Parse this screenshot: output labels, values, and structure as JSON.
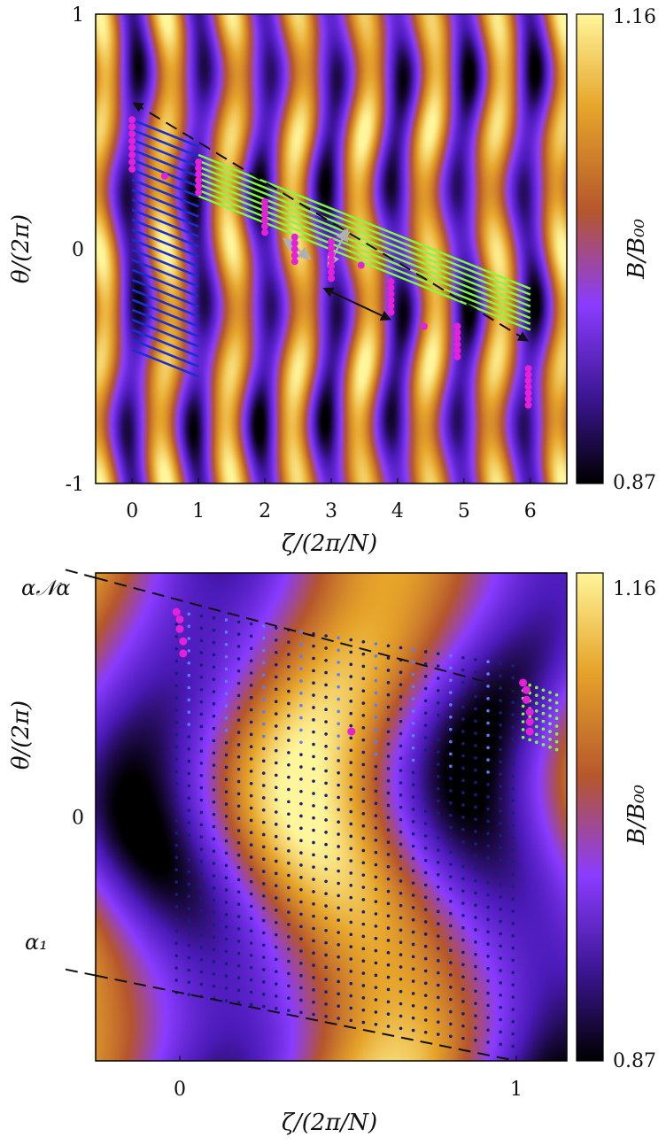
{
  "chart_data": [
    {
      "type": "heatmap",
      "xlabel": "ζ/(2π/N)",
      "ylabel": "θ/(2π)",
      "colorbar_label": "B/B₀₀",
      "colorbar_range": [
        0.87,
        1.16
      ],
      "colorbar_ticks": [
        "1.16",
        "0.87"
      ],
      "xlim": [
        -0.55,
        6.55
      ],
      "ylim": [
        -1,
        1
      ],
      "x_ticks": [
        "0",
        "1",
        "2",
        "3",
        "4",
        "5",
        "6"
      ],
      "x_tick_values": [
        0,
        1,
        2,
        3,
        4,
        5,
        6
      ],
      "y_ticks": [
        "1",
        "0",
        "-1"
      ],
      "y_tick_values": [
        1,
        0,
        -1
      ],
      "colormap": [
        "#000000",
        "#4b1ab8",
        "#8a3cff",
        "#b5562c",
        "#e6a42a",
        "#fff59a"
      ],
      "grid": false,
      "field_lines_blue": {
        "color": "#1a2fd0",
        "count": 24,
        "zeta_range": [
          0,
          1
        ],
        "theta_start_top": 0.55,
        "theta_start_bottom": -0.43,
        "theta_drop_per_period": 0.114
      },
      "field_lines_green": {
        "color": "#7cff3a",
        "count": 8,
        "zeta_range": [
          1,
          6
        ],
        "theta_start_top": 0.4,
        "theta_spacing": 0.025,
        "theta_drop_per_period": 0.114
      },
      "magenta_columns": [
        {
          "zeta": 0,
          "theta_top": 0.55,
          "count": 8,
          "theta_spacing": 0.03
        },
        {
          "zeta": 1,
          "theta_top": 0.37,
          "count": 6,
          "theta_spacing": 0.026
        },
        {
          "zeta": 2,
          "theta_top": 0.2,
          "count": 6,
          "theta_spacing": 0.026
        },
        {
          "zeta": 2.45,
          "theta_top": 0.05,
          "count": 5,
          "theta_spacing": 0.026
        },
        {
          "zeta": 3,
          "theta_top": 0.03,
          "count": 7,
          "theta_spacing": 0.026
        },
        {
          "zeta": 3.9,
          "theta_top": -0.14,
          "count": 6,
          "theta_spacing": 0.026
        },
        {
          "zeta": 4.9,
          "theta_top": -0.33,
          "count": 6,
          "theta_spacing": 0.026
        },
        {
          "zeta": 5.97,
          "theta_top": -0.51,
          "count": 7,
          "theta_spacing": 0.026
        }
      ],
      "magenta_single_points": [
        {
          "zeta": 0.49,
          "theta": 0.31
        },
        {
          "zeta": 3.45,
          "theta": -0.07
        },
        {
          "zeta": 4.4,
          "theta": -0.33
        }
      ],
      "arrows": [
        {
          "style": "dashed-black",
          "from": [
            5.95,
            -0.39
          ],
          "to": [
            0.03,
            0.62
          ]
        },
        {
          "style": "solid-black",
          "from": [
            2.9,
            -0.17
          ],
          "to": [
            3.88,
            -0.3
          ]
        },
        {
          "style": "gray",
          "from": [
            2.3,
            0.04
          ],
          "to": [
            2.67,
            -0.04
          ]
        },
        {
          "style": "gray",
          "from": [
            2.96,
            -0.07
          ],
          "to": [
            3.24,
            0.08
          ]
        }
      ]
    },
    {
      "type": "heatmap",
      "xlabel": "ζ/(2π/N)",
      "ylabel": "θ/(2π)",
      "colorbar_label": "B/B₀₀",
      "colorbar_range": [
        0.87,
        1.16
      ],
      "colorbar_ticks": [
        "1.16",
        "0.87"
      ],
      "xlim": [
        -0.25,
        1.15
      ],
      "ylim": [
        -1,
        1
      ],
      "x_ticks": [
        "0",
        "1"
      ],
      "x_tick_values": [
        0,
        1
      ],
      "y_ticks": [
        "0"
      ],
      "y_tick_values": [
        0
      ],
      "annotations": [
        "α𝒩α",
        "α₁"
      ],
      "colormap": [
        "#000000",
        "#4b1ab8",
        "#8a3cff",
        "#b5562c",
        "#e6a42a",
        "#fff59a"
      ],
      "grid": false,
      "grid_points_blue": {
        "color": "#15207a",
        "columns": 28,
        "zeta_range": [
          -0.01,
          0.99
        ],
        "theta_top_at_zero": 0.84,
        "theta_bottom_at_zero": -0.72,
        "rows": 32,
        "theta_drop_per_period": 0.22
      },
      "grid_points_green": {
        "color": "#7cff3a",
        "columns": 6,
        "zeta_range": [
          1.02,
          1.12
        ],
        "rows": 8
      },
      "magenta_points": [
        {
          "zeta": -0.01,
          "theta": 0.84
        },
        {
          "zeta": 0.0,
          "theta": 0.81
        },
        {
          "zeta": 0.0,
          "theta": 0.77
        },
        {
          "zeta": 0.01,
          "theta": 0.72
        },
        {
          "zeta": 0.01,
          "theta": 0.67
        },
        {
          "zeta": 0.51,
          "theta": 0.35
        },
        {
          "zeta": 1.02,
          "theta": 0.55
        },
        {
          "zeta": 1.03,
          "theta": 0.52
        },
        {
          "zeta": 1.03,
          "theta": 0.48
        },
        {
          "zeta": 1.04,
          "theta": 0.43
        },
        {
          "zeta": 1.04,
          "theta": 0.39
        },
        {
          "zeta": 1.04,
          "theta": 0.35
        }
      ],
      "dashed_lines": [
        {
          "label": "α𝒩α",
          "from": [
            -0.25,
            0.98
          ],
          "to": [
            1.0,
            0.52
          ]
        },
        {
          "label": "α₁",
          "from": [
            -0.25,
            -0.65
          ],
          "to": [
            1.0,
            -1.0
          ]
        }
      ]
    }
  ]
}
